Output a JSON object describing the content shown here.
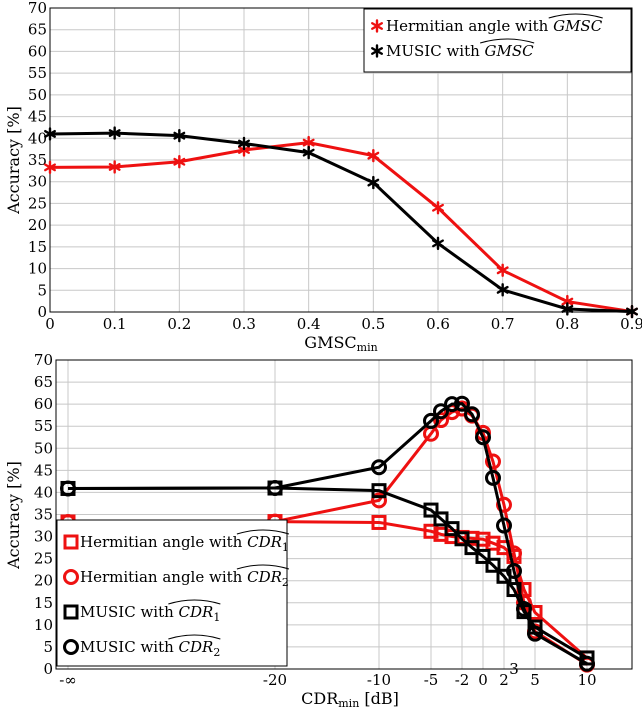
{
  "chart_data": [
    {
      "type": "line",
      "xlabel": "GMSC_min",
      "ylabel": "Accuracy [%]",
      "xlim": [
        0,
        0.9
      ],
      "ylim": [
        0,
        70
      ],
      "x_ticks": [
        "0",
        "0.1",
        "0.2",
        "0.3",
        "0.4",
        "0.5",
        "0.6",
        "0.7",
        "0.8",
        "0.9"
      ],
      "y_ticks": [
        "0",
        "5",
        "10",
        "15",
        "20",
        "25",
        "30",
        "35",
        "40",
        "45",
        "50",
        "55",
        "60",
        "65",
        "70"
      ],
      "grid": true,
      "legend_position": "top-right",
      "x": [
        0,
        0.1,
        0.2,
        0.3,
        0.4,
        0.5,
        0.6,
        0.7,
        0.8,
        0.9
      ],
      "series": [
        {
          "name": "Hermitian angle with GMSC-hat",
          "color": "#ee1111",
          "marker": "asterisk",
          "values": [
            33.3,
            33.4,
            34.6,
            37.3,
            39.0,
            36.0,
            24.0,
            9.6,
            2.4,
            0.1
          ]
        },
        {
          "name": "MUSIC with GMSC-hat",
          "color": "#000000",
          "marker": "asterisk",
          "values": [
            41.0,
            41.2,
            40.6,
            38.8,
            36.7,
            29.8,
            15.8,
            5.1,
            0.7,
            0.1
          ]
        }
      ]
    },
    {
      "type": "line",
      "xlabel": "CDR_min [dB]",
      "ylabel": "Accuracy [%]",
      "ylim": [
        0,
        70
      ],
      "x_ticks": [
        "-∞",
        "-20",
        "-10",
        "-5",
        "-2",
        "0",
        "2",
        "5",
        "10"
      ],
      "x_tick_extra": [
        "3"
      ],
      "y_ticks": [
        "0",
        "5",
        "10",
        "15",
        "20",
        "25",
        "30",
        "35",
        "40",
        "45",
        "50",
        "55",
        "60",
        "65",
        "70"
      ],
      "grid": true,
      "legend_position": "bottom-left",
      "series": [
        {
          "name": "Hermitian angle with CDR1-hat",
          "color": "#ee1111",
          "marker": "square",
          "x": [
            "-inf",
            -20,
            -10,
            -5,
            -4,
            -3,
            -2,
            -1,
            0,
            1,
            2,
            3,
            4,
            5,
            10
          ],
          "values": [
            33.3,
            33.4,
            33.2,
            31.2,
            30.5,
            30.0,
            29.8,
            29.6,
            29.4,
            28.5,
            27.5,
            25.5,
            18.0,
            12.8,
            2.5
          ]
        },
        {
          "name": "Hermitian angle with CDR2-hat",
          "color": "#ee1111",
          "marker": "circle",
          "x": [
            "-inf",
            -20,
            -10,
            -5,
            -4,
            -3,
            -2,
            -1,
            0,
            1,
            2,
            3,
            4,
            5,
            10
          ],
          "values": [
            33.3,
            33.4,
            38.2,
            53.3,
            56.4,
            58.2,
            59.0,
            57.4,
            53.5,
            47.0,
            37.2,
            26.2,
            15.0,
            8.5,
            1.0
          ]
        },
        {
          "name": "MUSIC with CDR1-hat",
          "color": "#000000",
          "marker": "square",
          "x": [
            "-inf",
            -20,
            -10,
            -5,
            -4,
            -3,
            -2,
            -1,
            0,
            1,
            2,
            3,
            4,
            5,
            10
          ],
          "values": [
            40.9,
            41.0,
            40.4,
            36.0,
            34.0,
            31.8,
            29.5,
            27.5,
            25.5,
            23.5,
            21.0,
            18.0,
            13.0,
            9.5,
            2.5
          ]
        },
        {
          "name": "MUSIC with CDR2-hat",
          "color": "#000000",
          "marker": "circle",
          "x": [
            "-inf",
            -20,
            -10,
            -5,
            -4,
            -3,
            -2,
            -1,
            0,
            1,
            2,
            3,
            4,
            5,
            10
          ],
          "values": [
            40.9,
            41.0,
            45.7,
            56.2,
            58.4,
            60.0,
            60.1,
            57.7,
            52.5,
            43.3,
            32.5,
            22.2,
            13.6,
            8.0,
            1.2
          ]
        }
      ]
    }
  ],
  "legends": {
    "top": [
      {
        "prefix": "Hermitian angle with ",
        "hat": "GMSC",
        "sub": ""
      },
      {
        "prefix": "MUSIC with ",
        "hat": "GMSC",
        "sub": ""
      }
    ],
    "bottom": [
      {
        "prefix": "Hermitian angle with ",
        "hat": "CDR",
        "sub": "1"
      },
      {
        "prefix": "Hermitian angle with ",
        "hat": "CDR",
        "sub": "2"
      },
      {
        "prefix": "MUSIC with ",
        "hat": "CDR",
        "sub": "1"
      },
      {
        "prefix": "MUSIC with ",
        "hat": "CDR",
        "sub": "2"
      }
    ]
  },
  "labels": {
    "top_ylabel": "Accuracy [%]",
    "top_xlabel_main": "GMSC",
    "top_xlabel_sub": "min",
    "bottom_ylabel": "Accuracy [%]",
    "bottom_xlabel_main": "CDR",
    "bottom_xlabel_sub": "min",
    "bottom_xlabel_unit": " [dB]"
  }
}
